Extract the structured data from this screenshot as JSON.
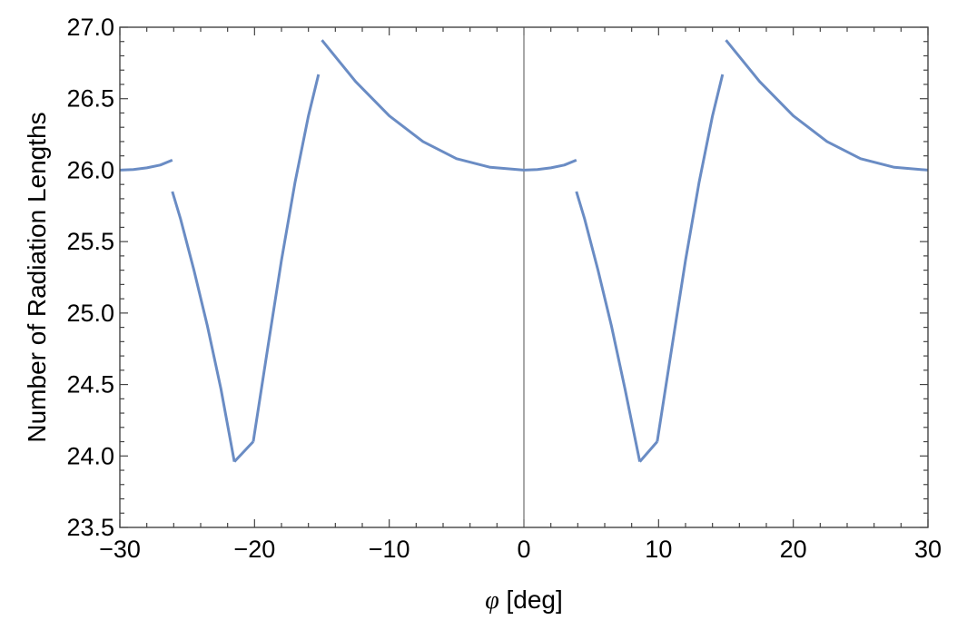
{
  "chart_data": {
    "type": "line",
    "title": "",
    "xlabel": {
      "symbol": "φ",
      "unit": " [deg]"
    },
    "ylabel": "Number of Radiation Lengths",
    "xlim": [
      -30,
      30
    ],
    "ylim": [
      23.5,
      27.0
    ],
    "xticks": [
      -30,
      -20,
      -10,
      0,
      10,
      20,
      30
    ],
    "xtick_labels": [
      "−30",
      "−20",
      "−10",
      "0",
      "10",
      "20",
      "30"
    ],
    "yticks": [
      23.5,
      24.0,
      24.5,
      25.0,
      25.5,
      26.0,
      26.5,
      27.0
    ],
    "ytick_labels": [
      "23.5",
      "24.0",
      "24.5",
      "25.0",
      "25.5",
      "26.0",
      "26.5",
      "27.0"
    ],
    "grid": false,
    "reference_line_x": 0,
    "line_color": "#6a8cc4",
    "segments": [
      {
        "x": [
          -30,
          -29,
          -28,
          -27,
          -26.1
        ],
        "y": [
          26.0,
          26.004,
          26.016,
          26.036,
          26.07
        ]
      },
      {
        "x": [
          -26.1,
          -25.5,
          -24.5,
          -23.5,
          -22.5,
          -21.5
        ],
        "y": [
          25.85,
          25.66,
          25.3,
          24.91,
          24.47,
          23.96
        ]
      },
      {
        "x": [
          -21.5,
          -20.1
        ],
        "y": [
          23.96,
          24.1
        ]
      },
      {
        "x": [
          -20.1,
          -19,
          -18,
          -17,
          -16,
          -15.25
        ],
        "y": [
          24.1,
          24.77,
          25.37,
          25.91,
          26.38,
          26.67
        ]
      },
      {
        "x": [
          -15,
          -12.5,
          -10,
          -7.5,
          -5,
          -2.5,
          0
        ],
        "y": [
          26.91,
          26.62,
          26.38,
          26.2,
          26.08,
          26.02,
          26.0
        ]
      },
      {
        "x": [
          0,
          1,
          2,
          3,
          3.9
        ],
        "y": [
          26.0,
          26.004,
          26.016,
          26.036,
          26.07
        ]
      },
      {
        "x": [
          3.9,
          4.5,
          5.5,
          6.5,
          7.5,
          8.6
        ],
        "y": [
          25.85,
          25.66,
          25.3,
          24.91,
          24.47,
          23.96
        ]
      },
      {
        "x": [
          8.6,
          9.9
        ],
        "y": [
          23.96,
          24.1
        ]
      },
      {
        "x": [
          9.9,
          11,
          12,
          13,
          14,
          14.75
        ],
        "y": [
          24.1,
          24.77,
          25.37,
          25.91,
          26.38,
          26.67
        ]
      },
      {
        "x": [
          15,
          17.5,
          20,
          22.5,
          25,
          27.5,
          30
        ],
        "y": [
          26.91,
          26.62,
          26.38,
          26.2,
          26.08,
          26.02,
          26.0
        ]
      }
    ]
  }
}
